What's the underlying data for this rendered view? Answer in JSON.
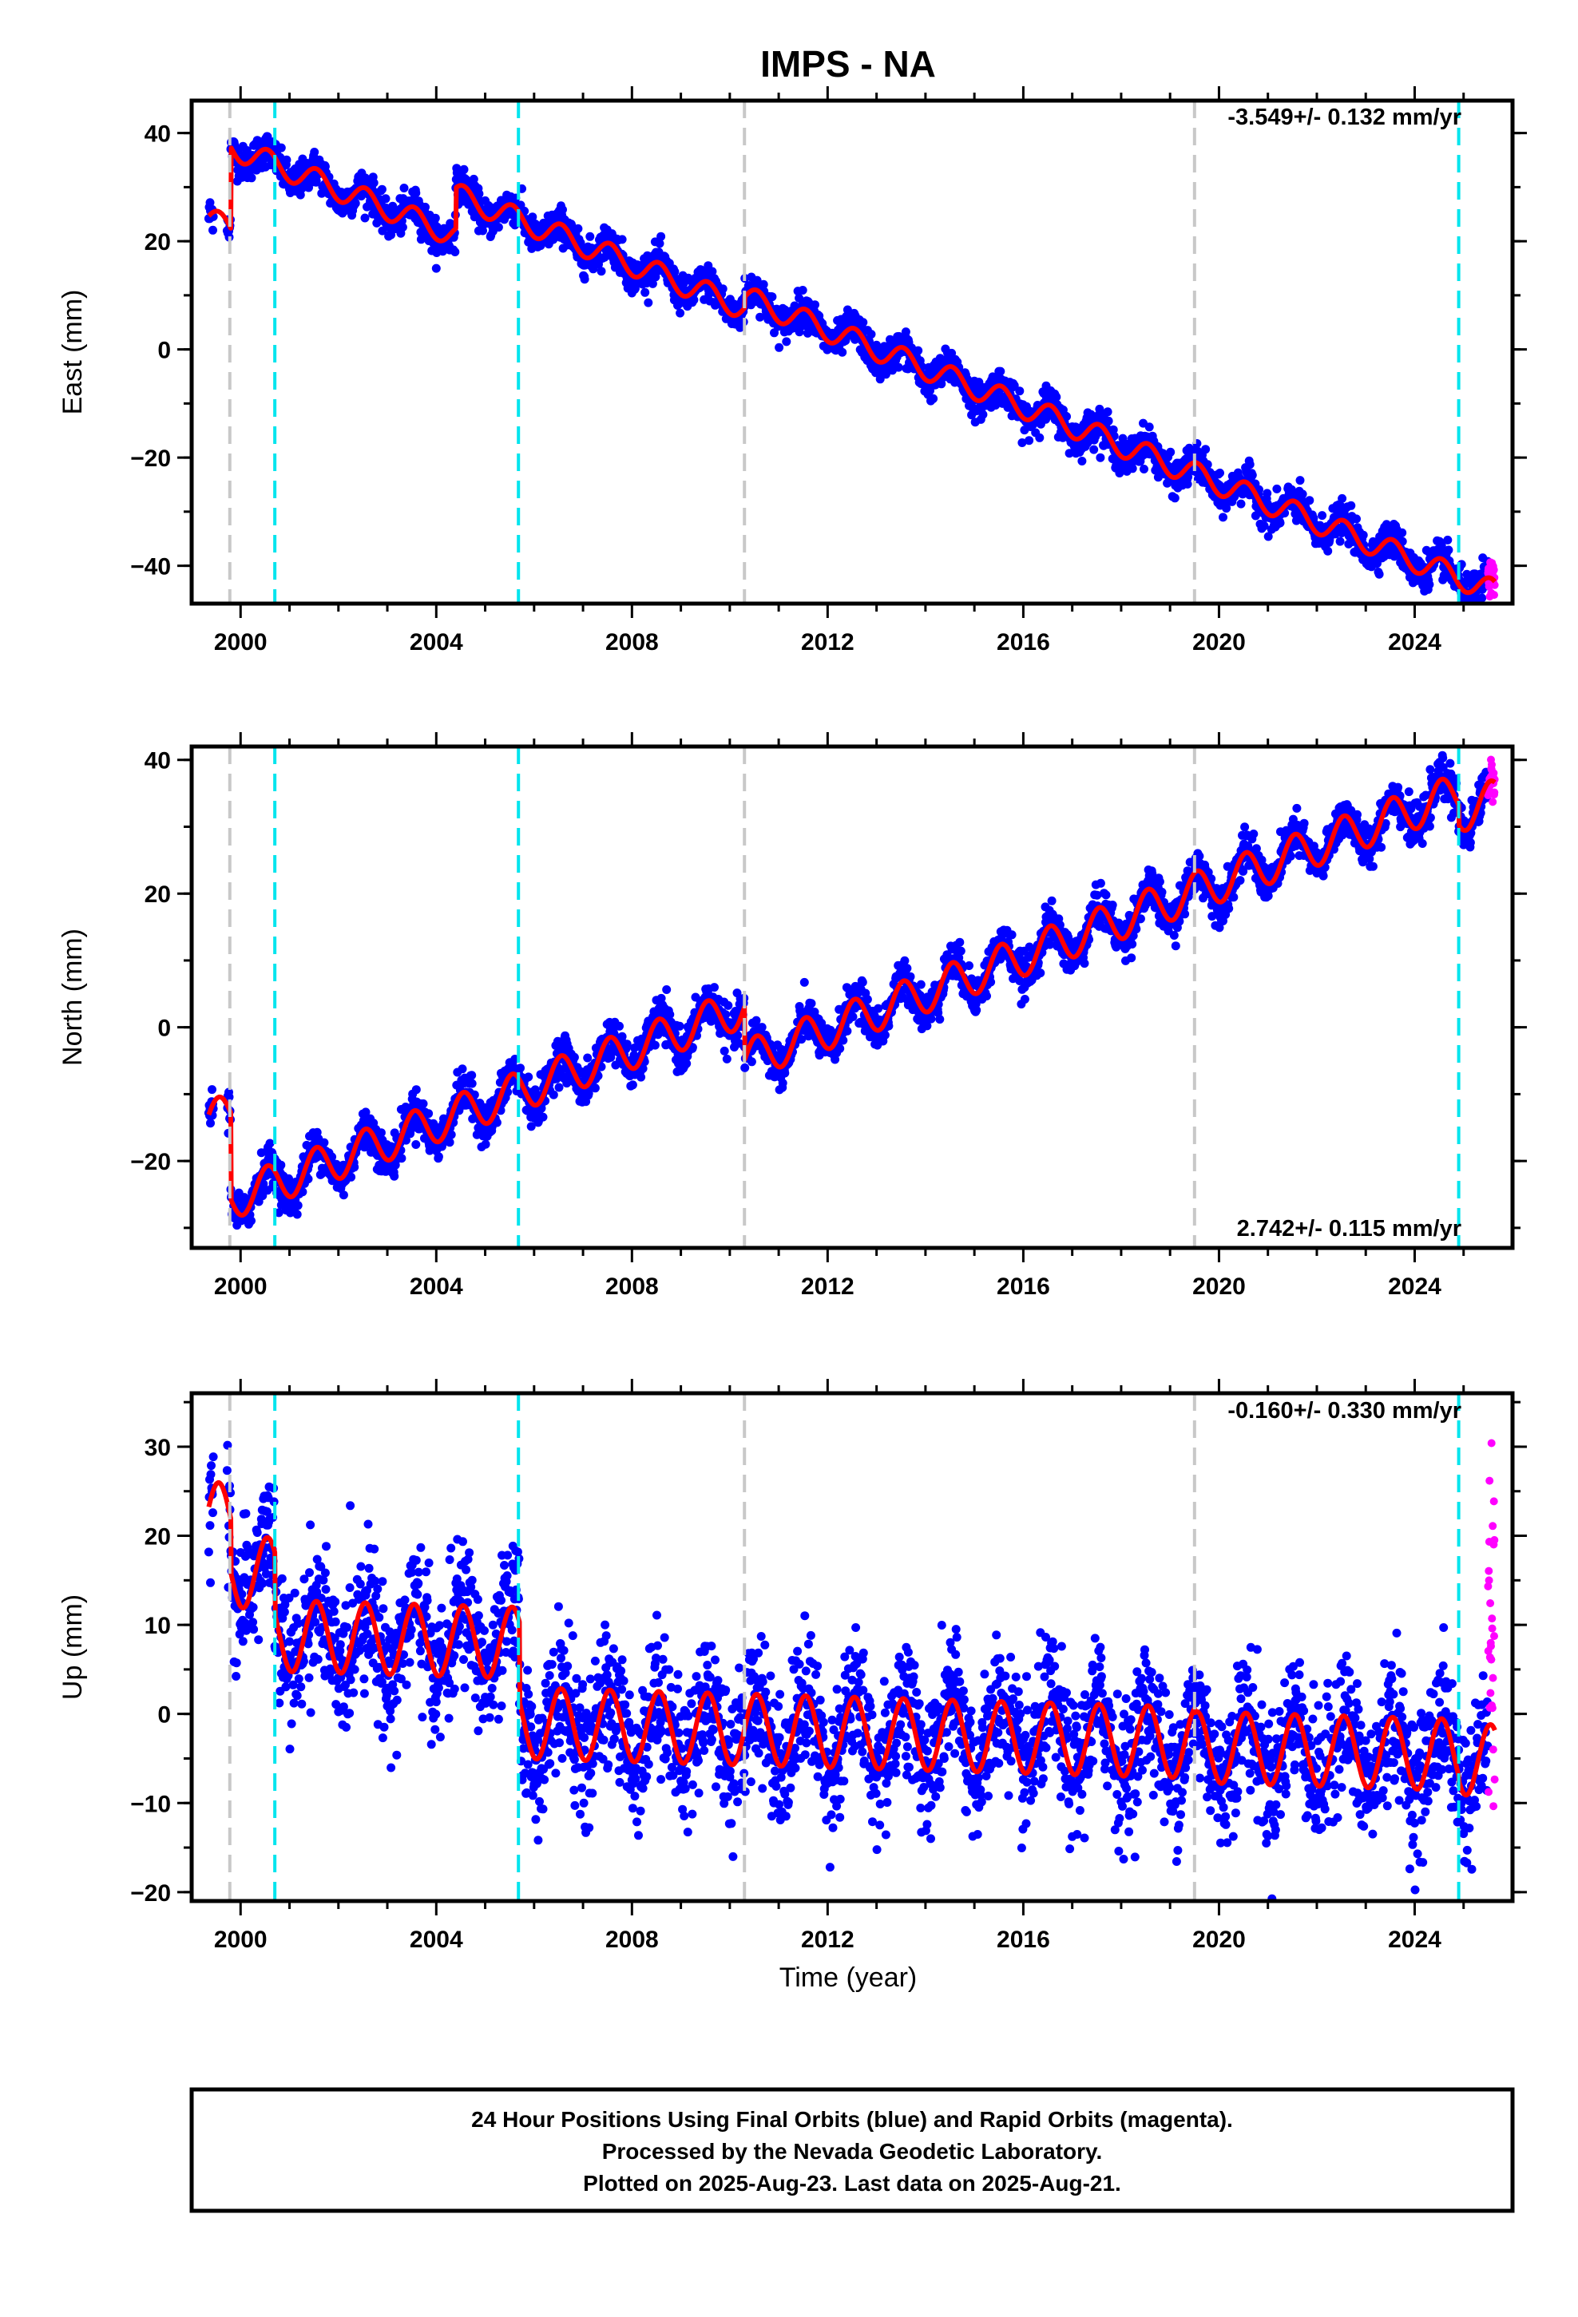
{
  "title": "IMPS - NA",
  "xlabel": "Time (year)",
  "footer": {
    "line1": "24 Hour Positions Using Final Orbits (blue) and Rapid Orbits (magenta).",
    "line2": "Processed by the Nevada Geodetic Laboratory.",
    "line3": "Plotted on 2025-Aug-23. Last data on 2025-Aug-21."
  },
  "colors": {
    "final": "#0000ff",
    "rapid": "#ff00ff",
    "model": "#ff0000",
    "equipment_change": "#c8c8c8",
    "earthquake": "#00e5ee"
  },
  "chart_data": [
    {
      "type": "scatter",
      "component": "East",
      "ylabel": "East (mm)",
      "rate_text": "-3.549+/- 0.132 mm/yr",
      "xlim": [
        1999.0,
        2026.0
      ],
      "ylim": [
        -47,
        46
      ],
      "xticks": [
        2000,
        2004,
        2008,
        2012,
        2016,
        2020,
        2024
      ],
      "yticks": [
        -40,
        -20,
        0,
        20,
        40
      ],
      "model": {
        "start": 1999.35,
        "end": 2025.64,
        "base": 24,
        "rate": -3.549,
        "seasonal_amplitude": 2.2,
        "noise": 1.6,
        "segments": [
          {
            "from": 1999.35,
            "offset": 0
          },
          {
            "from": 1999.8,
            "offset": 15
          },
          {
            "from": 2004.4,
            "offset": 22.5
          },
          {
            "from": 2010.3,
            "offset": 24.5
          }
        ]
      },
      "rapid_from": 2025.5,
      "series": [
        {
          "name": "Final Orbits",
          "color": "#0000ff"
        },
        {
          "name": "Rapid Orbits",
          "color": "#ff00ff"
        }
      ]
    },
    {
      "type": "scatter",
      "component": "North",
      "ylabel": "North (mm)",
      "rate_text": "2.742+/- 0.115 mm/yr",
      "xlim": [
        1999.0,
        2026.0
      ],
      "ylim": [
        -33,
        42
      ],
      "xticks": [
        2000,
        2004,
        2008,
        2012,
        2016,
        2020,
        2024
      ],
      "yticks": [
        -20,
        0,
        20,
        40
      ],
      "model": {
        "start": 1999.35,
        "end": 2025.64,
        "base": -14,
        "rate": 2.742,
        "seasonal_amplitude": 3.0,
        "noise": 1.5,
        "segments": [
          {
            "from": 1999.35,
            "offset": 0
          },
          {
            "from": 1999.8,
            "offset": -13
          },
          {
            "from": 2010.3,
            "offset": -21
          },
          {
            "from": 2024.9,
            "offset": -24
          }
        ]
      },
      "rapid_from": 2025.5,
      "series": [
        {
          "name": "Final Orbits",
          "color": "#0000ff"
        },
        {
          "name": "Rapid Orbits",
          "color": "#ff00ff"
        }
      ]
    },
    {
      "type": "scatter",
      "component": "Up",
      "ylabel": "Up (mm)",
      "rate_text": "-0.160+/- 0.330 mm/yr",
      "xlim": [
        1999.0,
        2026.0
      ],
      "ylim": [
        -21,
        36
      ],
      "xticks": [
        2000,
        2004,
        2008,
        2012,
        2016,
        2020,
        2024
      ],
      "yticks": [
        -20,
        -10,
        0,
        10,
        20,
        30
      ],
      "model": {
        "start": 1999.35,
        "end": 2025.64,
        "base": 22,
        "rate": -0.16,
        "seasonal_amplitude": 4.0,
        "noise": 3.8,
        "segments": [
          {
            "from": 1999.35,
            "offset": 0
          },
          {
            "from": 1999.8,
            "offset": -6
          },
          {
            "from": 2000.7,
            "offset": -13
          },
          {
            "from": 2005.7,
            "offset": -22
          },
          {
            "from": 2019.5,
            "offset": -22.5
          },
          {
            "from": 2024.9,
            "offset": -23
          }
        ]
      },
      "rapid_from": 2025.5,
      "series": [
        {
          "name": "Final Orbits",
          "color": "#0000ff"
        },
        {
          "name": "Rapid Orbits",
          "color": "#ff00ff"
        }
      ]
    }
  ],
  "events": {
    "equipment_changes": [
      1999.78,
      2010.3,
      2019.5
    ],
    "earthquakes": [
      2000.7,
      2005.68,
      2024.9
    ]
  }
}
